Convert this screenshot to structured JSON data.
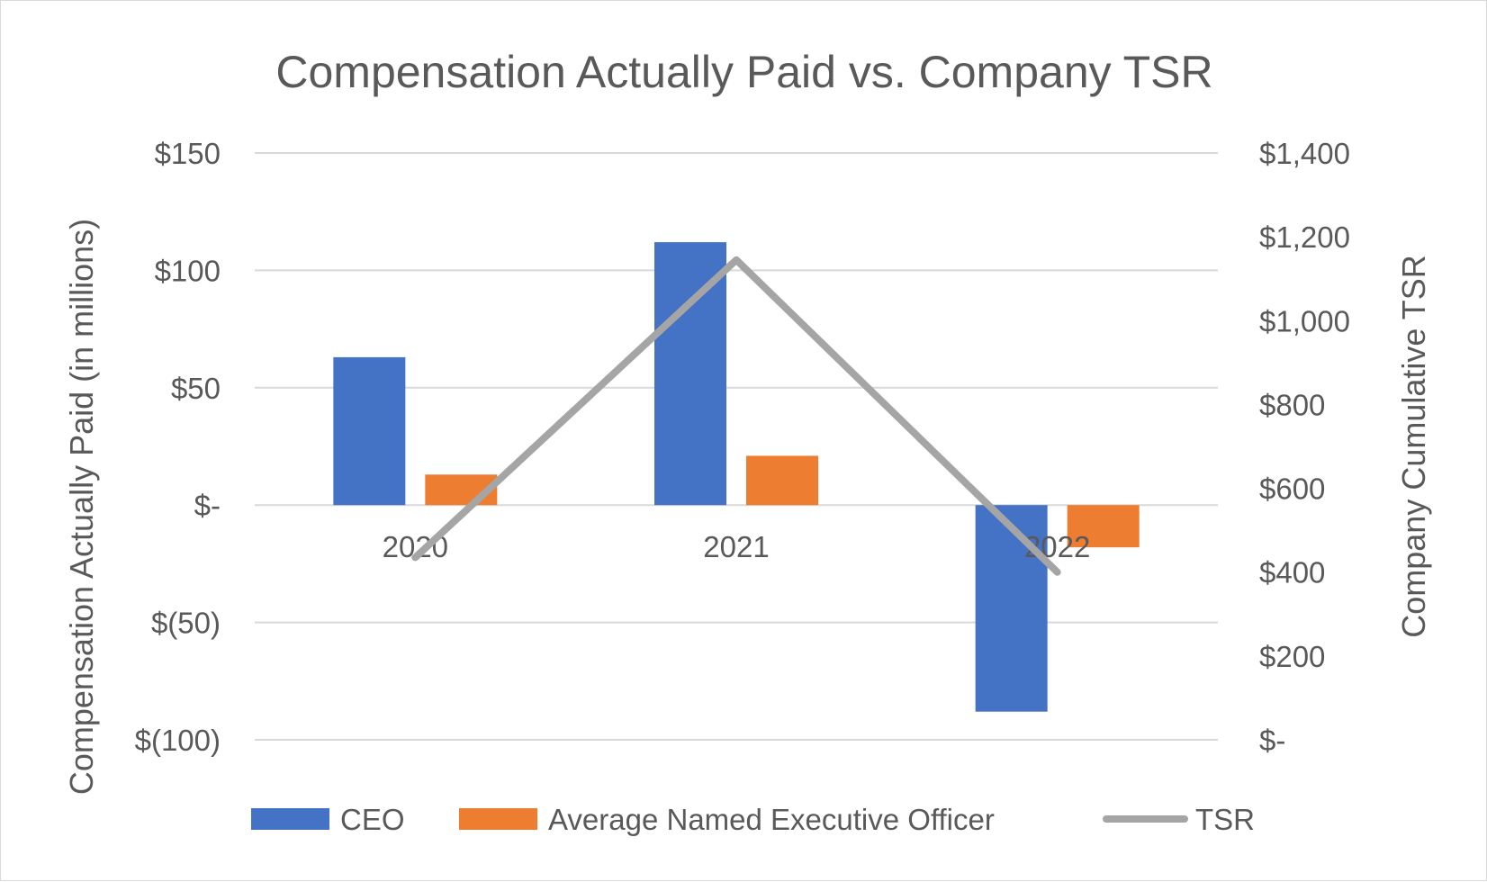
{
  "chart_data": {
    "type": "bar",
    "title": "Compensation Actually Paid vs. Company TSR",
    "categories": [
      "2020",
      "2021",
      "2022"
    ],
    "series": [
      {
        "name": "CEO",
        "type": "bar",
        "axis": "left",
        "color": "#4472C4",
        "values": [
          63,
          112,
          -88
        ]
      },
      {
        "name": "Average Named Executive Officer",
        "type": "bar",
        "axis": "left",
        "color": "#ED7D31",
        "values": [
          13,
          21,
          -18
        ]
      },
      {
        "name": "TSR",
        "type": "line",
        "axis": "right",
        "color": "#A5A5A5",
        "values": [
          435,
          1145,
          400
        ]
      }
    ],
    "y_left": {
      "label": "Compensation Actually Paid (in millions)",
      "min": -100,
      "max": 150,
      "step": 50,
      "tick_labels": [
        "$(100)",
        "$(50)",
        "$-",
        "$50",
        "$100",
        "$150"
      ]
    },
    "y_right": {
      "label": "Company Cumulative TSR",
      "min": 0,
      "max": 1400,
      "step": 200,
      "tick_labels": [
        "$-",
        "$200",
        "$400",
        "$600",
        "$800",
        "$1,000",
        "$1,200",
        "$1,400"
      ]
    },
    "grid": true,
    "legend_position": "bottom"
  }
}
